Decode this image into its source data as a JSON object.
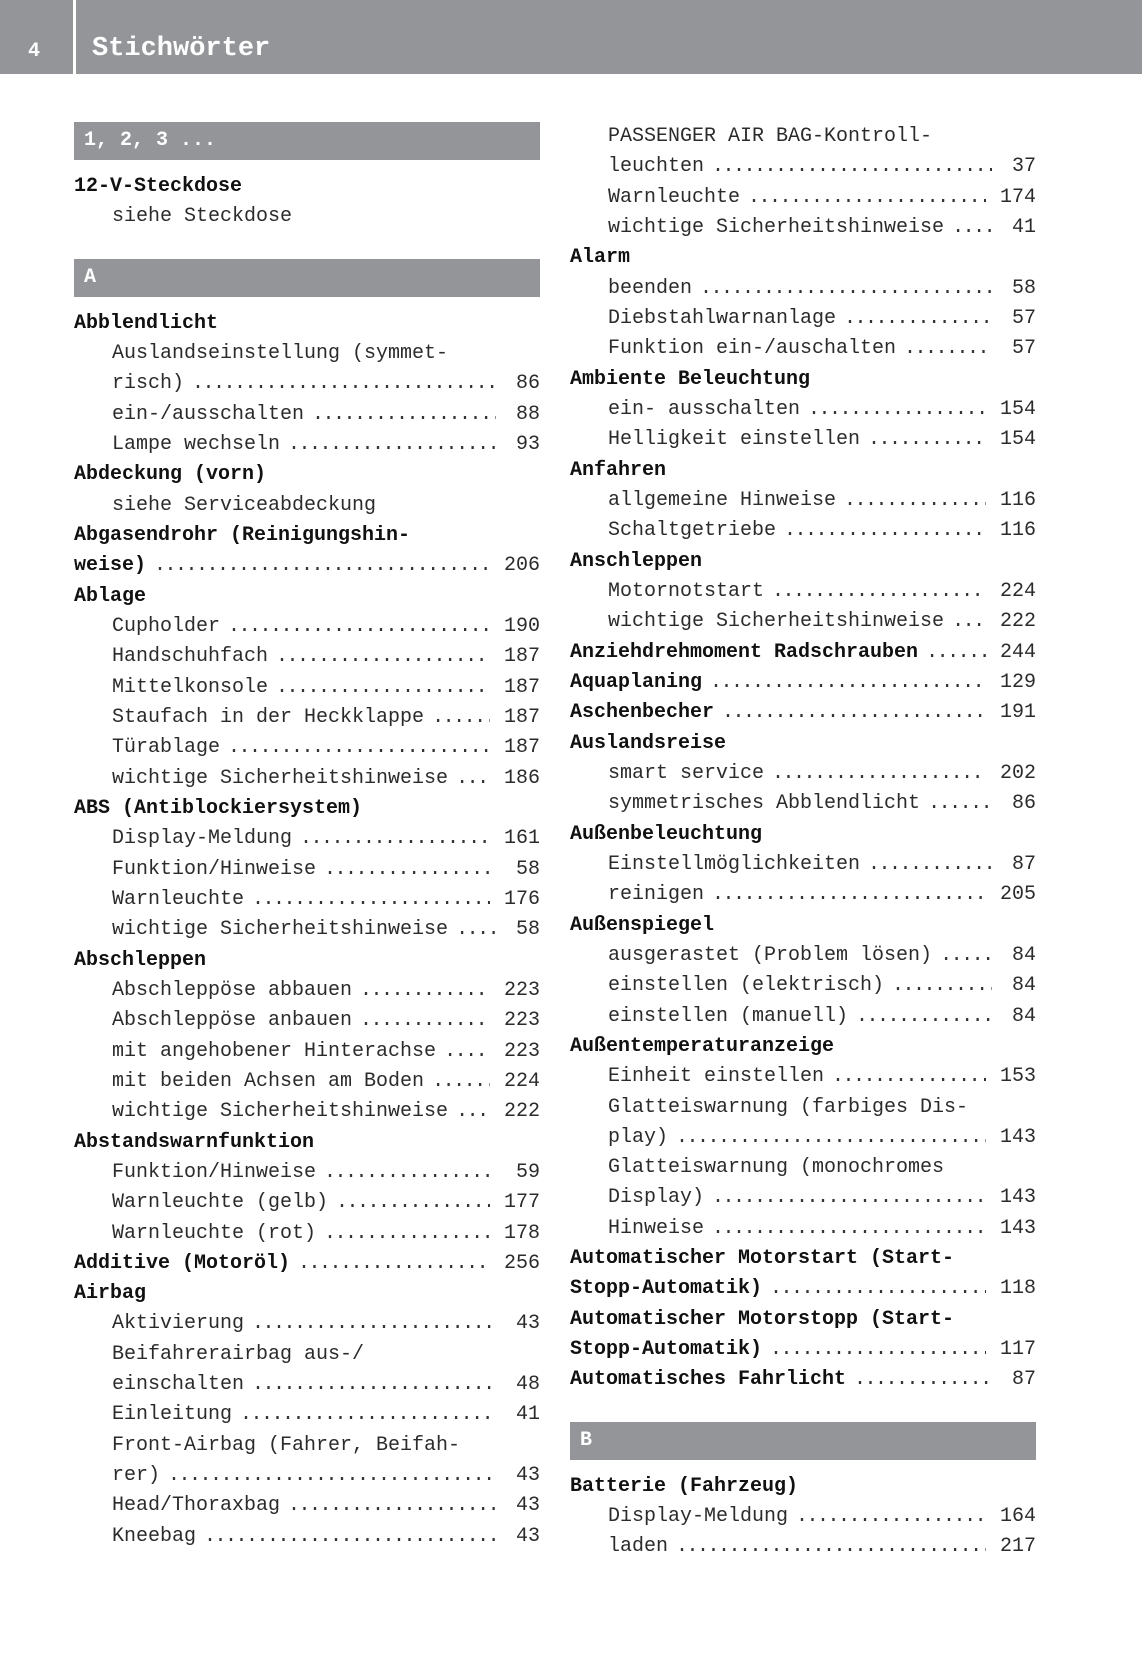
{
  "header": {
    "page_number": "4",
    "title": "Stichwörter",
    "color": "#939598"
  },
  "columns": [
    [
      {
        "type": "bar",
        "label": "1, 2, 3 ..."
      },
      {
        "type": "line",
        "bold": true,
        "text": "12-V-Steckdose"
      },
      {
        "type": "line",
        "sub": true,
        "text": "siehe Steckdose"
      },
      {
        "type": "bar",
        "label": "A"
      },
      {
        "type": "line",
        "bold": true,
        "text": "Abblendlicht"
      },
      {
        "type": "line",
        "sub": true,
        "text": "Auslandseinstellung (symmet-"
      },
      {
        "type": "line",
        "sub": true,
        "text": "risch)",
        "page": "86"
      },
      {
        "type": "line",
        "sub": true,
        "text": "ein-/ausschalten",
        "page": "88"
      },
      {
        "type": "line",
        "sub": true,
        "text": "Lampe wechseln",
        "page": "93"
      },
      {
        "type": "line",
        "bold": true,
        "text": "Abdeckung (vorn)"
      },
      {
        "type": "line",
        "sub": true,
        "text": "siehe Serviceabdeckung"
      },
      {
        "type": "line",
        "bold": true,
        "text": "Abgasendrohr (Reinigungshin-"
      },
      {
        "type": "line",
        "bold": true,
        "text": "weise)",
        "page": "206"
      },
      {
        "type": "line",
        "bold": true,
        "text": "Ablage"
      },
      {
        "type": "line",
        "sub": true,
        "text": "Cupholder",
        "page": "190"
      },
      {
        "type": "line",
        "sub": true,
        "text": "Handschuhfach",
        "page": "187"
      },
      {
        "type": "line",
        "sub": true,
        "text": "Mittelkonsole",
        "page": "187"
      },
      {
        "type": "line",
        "sub": true,
        "text": "Staufach in der Heckklappe",
        "page": "187"
      },
      {
        "type": "line",
        "sub": true,
        "text": "Türablage",
        "page": "187"
      },
      {
        "type": "line",
        "sub": true,
        "text": "wichtige Sicherheitshinweise",
        "page": "186"
      },
      {
        "type": "line",
        "bold": true,
        "text": "ABS (Antiblockiersystem)"
      },
      {
        "type": "line",
        "sub": true,
        "text": "Display-Meldung",
        "page": "161"
      },
      {
        "type": "line",
        "sub": true,
        "text": "Funktion/Hinweise",
        "page": "58"
      },
      {
        "type": "line",
        "sub": true,
        "text": "Warnleuchte",
        "page": "176"
      },
      {
        "type": "line",
        "sub": true,
        "text": "wichtige Sicherheitshinweise",
        "page": "58"
      },
      {
        "type": "line",
        "bold": true,
        "text": "Abschleppen"
      },
      {
        "type": "line",
        "sub": true,
        "text": "Abschleppöse abbauen",
        "page": "223"
      },
      {
        "type": "line",
        "sub": true,
        "text": "Abschleppöse anbauen",
        "page": "223"
      },
      {
        "type": "line",
        "sub": true,
        "text": "mit angehobener Hinterachse",
        "page": "223"
      },
      {
        "type": "line",
        "sub": true,
        "text": "mit beiden Achsen am Boden",
        "page": "224"
      },
      {
        "type": "line",
        "sub": true,
        "text": "wichtige Sicherheitshinweise",
        "page": "222"
      },
      {
        "type": "line",
        "bold": true,
        "text": "Abstandswarnfunktion"
      },
      {
        "type": "line",
        "sub": true,
        "text": "Funktion/Hinweise",
        "page": "59"
      },
      {
        "type": "line",
        "sub": true,
        "text": "Warnleuchte (gelb)",
        "page": "177"
      },
      {
        "type": "line",
        "sub": true,
        "text": "Warnleuchte (rot)",
        "page": "178"
      },
      {
        "type": "line",
        "bold": true,
        "text": "Additive (Motoröl)",
        "page": "256"
      },
      {
        "type": "line",
        "bold": true,
        "text": "Airbag"
      },
      {
        "type": "line",
        "sub": true,
        "text": "Aktivierung",
        "page": "43"
      },
      {
        "type": "line",
        "sub": true,
        "text": "Beifahrerairbag aus-/"
      },
      {
        "type": "line",
        "sub": true,
        "text": "einschalten",
        "page": "48"
      },
      {
        "type": "line",
        "sub": true,
        "text": "Einleitung",
        "page": "41"
      },
      {
        "type": "line",
        "sub": true,
        "text": "Front-Airbag (Fahrer, Beifah-"
      },
      {
        "type": "line",
        "sub": true,
        "text": "rer)",
        "page": "43"
      },
      {
        "type": "line",
        "sub": true,
        "text": "Head/Thoraxbag",
        "page": "43"
      },
      {
        "type": "line",
        "sub": true,
        "text": "Kneebag",
        "page": "43"
      }
    ],
    [
      {
        "type": "line",
        "sub": true,
        "text": "PASSENGER AIR BAG-Kontroll-"
      },
      {
        "type": "line",
        "sub": true,
        "text": "leuchten",
        "page": "37"
      },
      {
        "type": "line",
        "sub": true,
        "text": "Warnleuchte",
        "page": "174"
      },
      {
        "type": "line",
        "sub": true,
        "text": "wichtige Sicherheitshinweise",
        "page": "41"
      },
      {
        "type": "line",
        "bold": true,
        "text": "Alarm"
      },
      {
        "type": "line",
        "sub": true,
        "text": "beenden",
        "page": "58"
      },
      {
        "type": "line",
        "sub": true,
        "text": "Diebstahlwarnanlage",
        "page": "57"
      },
      {
        "type": "line",
        "sub": true,
        "text": "Funktion ein-/auschalten",
        "page": "57"
      },
      {
        "type": "line",
        "bold": true,
        "text": "Ambiente Beleuchtung"
      },
      {
        "type": "line",
        "sub": true,
        "text": "ein- ausschalten",
        "page": "154"
      },
      {
        "type": "line",
        "sub": true,
        "text": "Helligkeit einstellen",
        "page": "154"
      },
      {
        "type": "line",
        "bold": true,
        "text": "Anfahren"
      },
      {
        "type": "line",
        "sub": true,
        "text": "allgemeine Hinweise",
        "page": "116"
      },
      {
        "type": "line",
        "sub": true,
        "text": "Schaltgetriebe",
        "page": "116"
      },
      {
        "type": "line",
        "bold": true,
        "text": "Anschleppen"
      },
      {
        "type": "line",
        "sub": true,
        "text": "Motornotstart",
        "page": "224"
      },
      {
        "type": "line",
        "sub": true,
        "text": "wichtige Sicherheitshinweise",
        "page": "222"
      },
      {
        "type": "line",
        "bold": true,
        "text": "Anziehdrehmoment Radschrauben",
        "page": "244"
      },
      {
        "type": "line",
        "bold": true,
        "text": "Aquaplaning",
        "page": "129"
      },
      {
        "type": "line",
        "bold": true,
        "text": "Aschenbecher",
        "page": "191"
      },
      {
        "type": "line",
        "bold": true,
        "text": "Auslandsreise"
      },
      {
        "type": "line",
        "sub": true,
        "text": "smart service",
        "page": "202"
      },
      {
        "type": "line",
        "sub": true,
        "text": "symmetrisches Abblendlicht",
        "page": "86"
      },
      {
        "type": "line",
        "bold": true,
        "text": "Außenbeleuchtung"
      },
      {
        "type": "line",
        "sub": true,
        "text": "Einstellmöglichkeiten",
        "page": "87"
      },
      {
        "type": "line",
        "sub": true,
        "text": "reinigen",
        "page": "205"
      },
      {
        "type": "line",
        "bold": true,
        "text": "Außenspiegel"
      },
      {
        "type": "line",
        "sub": true,
        "text": "ausgerastet (Problem lösen)",
        "page": "84"
      },
      {
        "type": "line",
        "sub": true,
        "text": "einstellen (elektrisch)",
        "page": "84"
      },
      {
        "type": "line",
        "sub": true,
        "text": "einstellen (manuell)",
        "page": "84"
      },
      {
        "type": "line",
        "bold": true,
        "text": "Außentemperaturanzeige"
      },
      {
        "type": "line",
        "sub": true,
        "text": "Einheit einstellen",
        "page": "153"
      },
      {
        "type": "line",
        "sub": true,
        "text": "Glatteiswarnung (farbiges Dis-"
      },
      {
        "type": "line",
        "sub": true,
        "text": "play)",
        "page": "143"
      },
      {
        "type": "line",
        "sub": true,
        "text": "Glatteiswarnung (monochromes"
      },
      {
        "type": "line",
        "sub": true,
        "text": "Display)",
        "page": "143"
      },
      {
        "type": "line",
        "sub": true,
        "text": "Hinweise",
        "page": "143"
      },
      {
        "type": "line",
        "bold": true,
        "text": "Automatischer Motorstart (Start-"
      },
      {
        "type": "line",
        "bold": true,
        "text": "Stopp-Automatik)",
        "page": "118"
      },
      {
        "type": "line",
        "bold": true,
        "text": "Automatischer Motorstopp (Start-"
      },
      {
        "type": "line",
        "bold": true,
        "text": "Stopp-Automatik)",
        "page": "117"
      },
      {
        "type": "line",
        "bold": true,
        "text": "Automatisches Fahrlicht",
        "page": "87"
      },
      {
        "type": "bar",
        "label": "B"
      },
      {
        "type": "line",
        "bold": true,
        "text": "Batterie (Fahrzeug)"
      },
      {
        "type": "line",
        "sub": true,
        "text": "Display-Meldung",
        "page": "164"
      },
      {
        "type": "line",
        "sub": true,
        "text": "laden",
        "page": "217"
      }
    ]
  ]
}
